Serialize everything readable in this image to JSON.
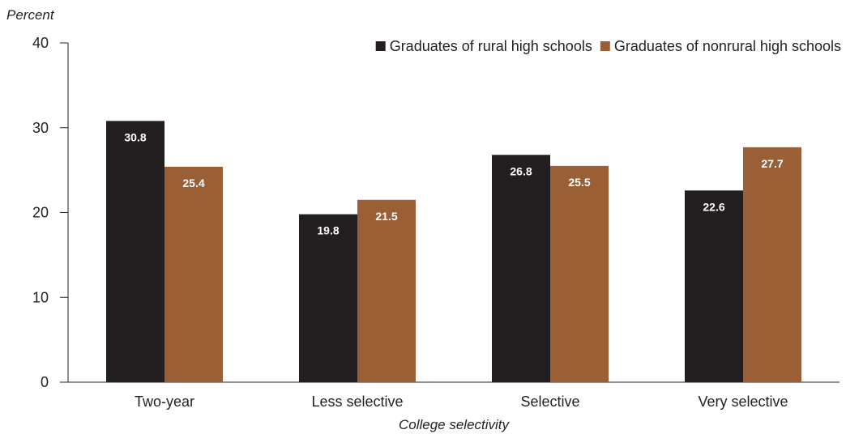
{
  "chart_data": {
    "type": "bar",
    "title": "",
    "ylabel": "Percent",
    "xlabel": "College selectivity",
    "ylim": [
      0,
      40
    ],
    "yticks": [
      0,
      10,
      20,
      30,
      40
    ],
    "grid": false,
    "legend_position": "top-right",
    "categories": [
      "Two-year",
      "Less selective",
      "Selective",
      "Very selective"
    ],
    "series": [
      {
        "name": "Graduates of rural high schools",
        "color": "#231f20",
        "values": [
          30.8,
          19.8,
          26.8,
          22.6
        ],
        "labels": [
          "30.8",
          "19.8",
          "26.8",
          "22.6"
        ]
      },
      {
        "name": "Graduates of nonrural high schools",
        "color": "#9a5f34",
        "values": [
          25.4,
          21.5,
          25.5,
          27.7
        ],
        "labels": [
          "25.4",
          "21.5",
          "25.5",
          "27.7"
        ]
      }
    ]
  }
}
